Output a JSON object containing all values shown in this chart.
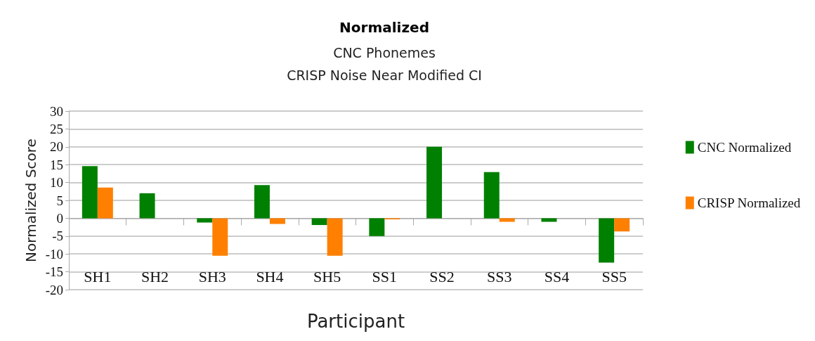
{
  "chart_data": {
    "type": "bar",
    "title": "Normalized",
    "subtitle": "CNC Phonemes\nCRISP Noise Near Modified CI",
    "xlabel": "Participant",
    "ylabel": "Normalized Score",
    "categories": [
      "SH1",
      "SH2",
      "SH3",
      "SH4",
      "SH5",
      "SS1",
      "SS2",
      "SS3",
      "SS4",
      "SS5"
    ],
    "series": [
      {
        "name": "CNC Normalized",
        "color": "#008000",
        "values": [
          14.6,
          7,
          -1.2,
          9.3,
          -1.9,
          -5,
          20,
          12.9,
          -1,
          -12.4
        ]
      },
      {
        "name": "CRISP Normalized",
        "color": "#ff8000",
        "values": [
          8.6,
          0,
          -10.5,
          -1.6,
          -10.5,
          -0.3,
          0,
          -1,
          0,
          -3.7
        ]
      }
    ],
    "ylim": [
      -20,
      30
    ],
    "yticks": [
      -20,
      -15,
      -10,
      -5,
      0,
      5,
      10,
      15,
      20,
      25,
      30
    ],
    "grid": "y",
    "legend": "right"
  }
}
